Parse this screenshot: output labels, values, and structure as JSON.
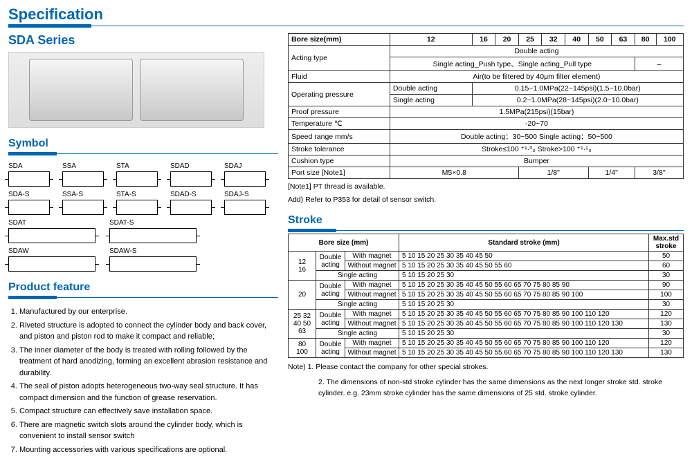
{
  "header": "Specification",
  "series": "SDA Series",
  "symbolTitle": "Symbol",
  "symbols": [
    "SDA",
    "SSA",
    "STA",
    "SDAD",
    "SDAJ",
    "SDA-S",
    "SSA-S",
    "STA-S",
    "SDAD-S",
    "SDAJ-S"
  ],
  "symbolsWide": [
    "SDAT",
    "SDAT-S",
    "SDAW",
    "SDAW-S"
  ],
  "featureTitle": "Product feature",
  "features": [
    "Manufactured by our enterprise.",
    "Riveted structure is adopted to connect the cylinder body and back cover, and piston and piston rod to make it compact and reliable;",
    "The inner diameter of the body is treated with rolling followed by the treatment of hard anodizing, forming an excellent abrasion resistance and durability.",
    "The seal of piston adopts heterogeneous two-way seal structure. It has compact dimension and the function of grease reservation.",
    "Compact structure can effectively save installation space.",
    "There are magnetic switch slots around the cylinder body, which is convenient to install sensor switch",
    "Mounting accessories with various specifications are optional."
  ],
  "spec": {
    "boreLabel": "Bore size(mm)",
    "bores": [
      "12",
      "16",
      "20",
      "25",
      "32",
      "40",
      "50",
      "63",
      "80",
      "100"
    ],
    "actingLabel": "Acting type",
    "doubleActing": "Double acting",
    "singleActing": "Single acting_Push type、Single acting_Pull type",
    "dash": "–",
    "fluidLabel": "Fluid",
    "fluid": "Air(to be filtered by 40μm filter element)",
    "opLabel": "Operating pressure",
    "opDouble": "Double acting",
    "opDoubleV": "0.15~1.0MPa(22~145psi)(1.5~10.0bar)",
    "opSingle": "Single acting",
    "opSingleV": "0.2~1.0MPa(28~145psi)(2.0~10.0bar)",
    "proofLabel": "Proof pressure",
    "proof": "1.5MPa(215psi)(15bar)",
    "tempLabel": "Temperature ℃",
    "temp": "-20~70",
    "speedLabel": "Speed range  mm/s",
    "speed": "Double acting：30~500    Single acting：50~500",
    "tolLabel": "Stroke tolerance",
    "tol": "Stroke≤100 ⁺¹·⁰₀    Stroke>100 ⁺¹·⁵₀",
    "cushLabel": "Cushion type",
    "cush": "Bumper",
    "portLabel": "Port size  [Note1]",
    "port1": "M5×0.8",
    "port2": "1/8\"",
    "port3": "1/4\"",
    "port4": "3/8\"",
    "n1": "[Note1] PT thread is available.",
    "n2": "Add) Refer to P353 for detail of sensor switch."
  },
  "strokeTitle": "Stroke",
  "stroke": {
    "boreH": "Bore size (mm)",
    "stdH": "Standard stroke (mm)",
    "maxH": "Max.std stroke",
    "da": "Double acting",
    "sa": "Single acting",
    "wm": "With magnet",
    "wom": "Without magnet",
    "rows": [
      {
        "bore": "12\n16",
        "r": [
          {
            "t": "da",
            "m": "wm",
            "s": "5 10 15 20 25 30 35 40 45 50",
            "max": "50"
          },
          {
            "t": "da",
            "m": "wom",
            "s": "5 10 15 20 25 30 35 40 45 50 55 60",
            "max": "60"
          },
          {
            "t": "sa",
            "m": "",
            "s": "5 10 15 20 25 30",
            "max": "30"
          }
        ]
      },
      {
        "bore": "20",
        "r": [
          {
            "t": "da",
            "m": "wm",
            "s": "5 10 15 20 25 30 35 40 45 50 55 60 65 70 75 80 85 90",
            "max": "90"
          },
          {
            "t": "da",
            "m": "wom",
            "s": "5 10 15 20 25 30 35 40 45 50 55 60 65 70 75 80 85 90 100",
            "max": "100"
          },
          {
            "t": "sa",
            "m": "",
            "s": "5 10 15 20 25 30",
            "max": "30"
          }
        ]
      },
      {
        "bore": "25 32\n40 50\n63",
        "r": [
          {
            "t": "da",
            "m": "wm",
            "s": "5 10 15 20 25 30 35 40 45 50 55 60 65 70 75 80 85 90 100 110 120",
            "max": "120"
          },
          {
            "t": "da",
            "m": "wom",
            "s": "5 10 15 20 25 30 35 40 45 50 55 60 65 70 75 80 85 90 100 110 120 130",
            "max": "130"
          },
          {
            "t": "sa",
            "m": "",
            "s": "5 10 15 20 25 30",
            "max": "30"
          }
        ]
      },
      {
        "bore": "80\n100",
        "r": [
          {
            "t": "da",
            "m": "wm",
            "s": "5 10 15 20 25 30 35 40 45 50 55 60 65 70 75 80 85 90 100 110 120",
            "max": "120"
          },
          {
            "t": "da",
            "m": "wom",
            "s": "5 10 15 20 25 30 35 40 45 50 55 60 65 70 75 80 85 90 100 110 120 130",
            "max": "130"
          }
        ]
      }
    ],
    "note1": "Note) 1. Please contact the company for other special strokes.",
    "note2": "2. The dimensions of non-std stroke cylinder has the same dimensions as the next longer stroke std. stroke cylinder. e.g. 23mm stroke cylinder has the same dimensions of 25 std. stroke cylinder."
  }
}
